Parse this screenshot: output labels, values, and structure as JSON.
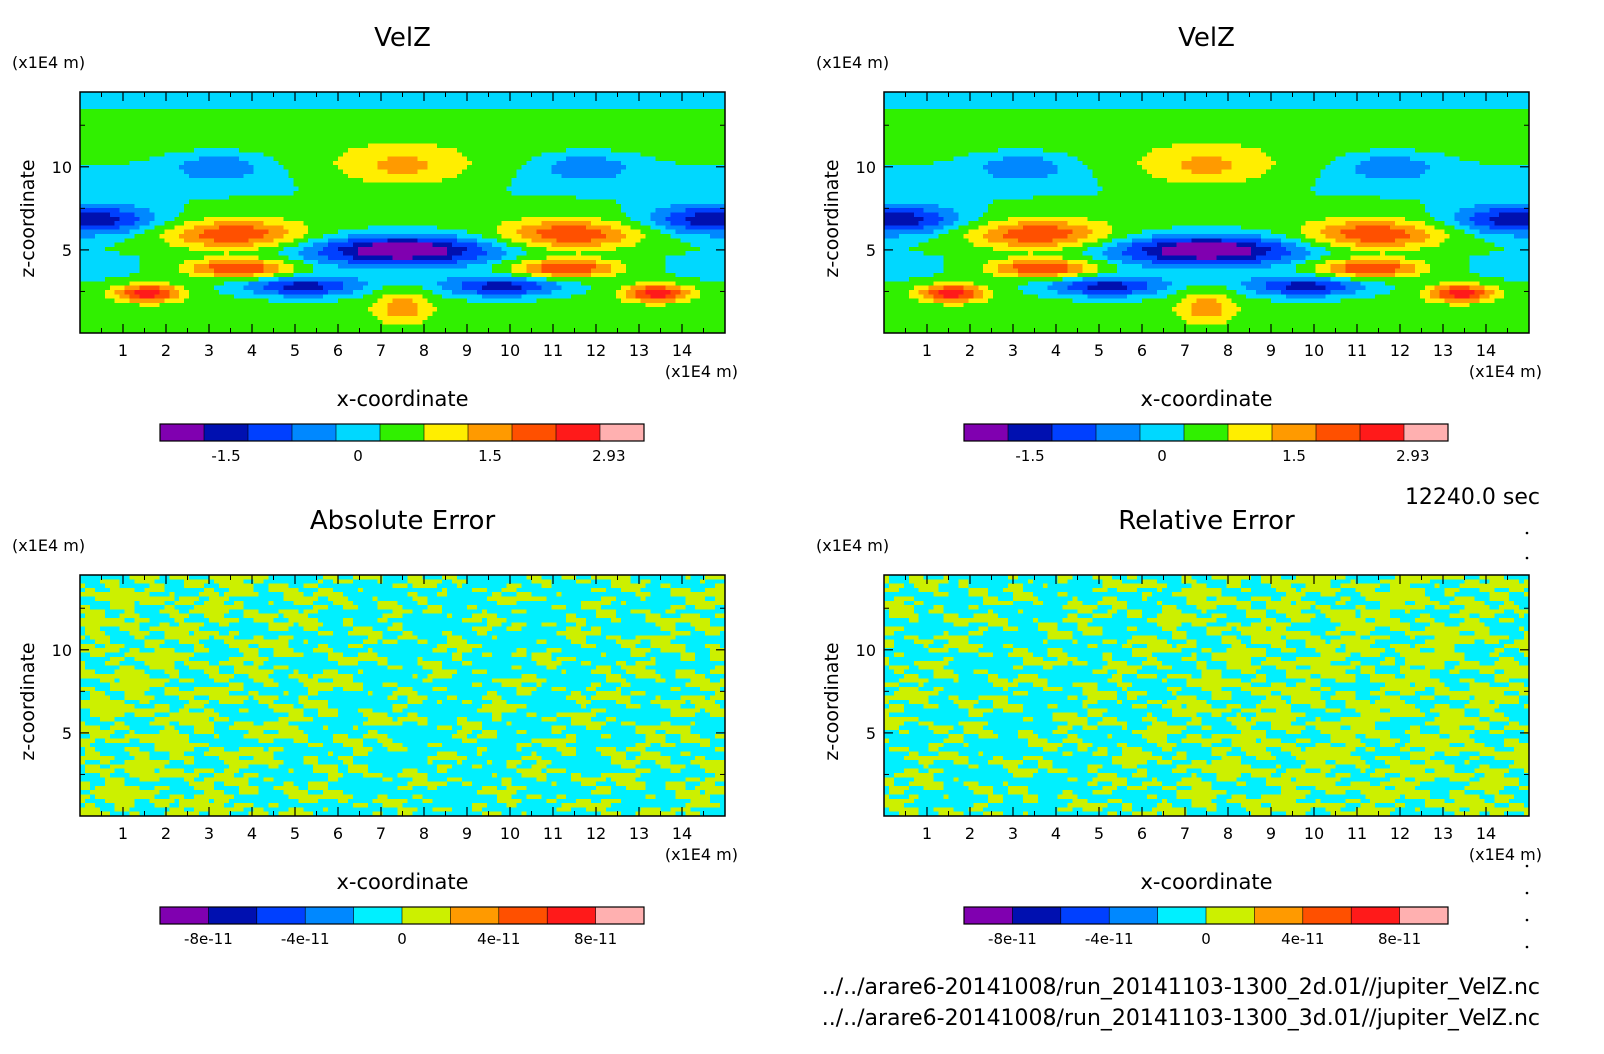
{
  "figure": {
    "time_label": "12240.0 sec",
    "file_paths": [
      "../../arare6-20141008/run_20141103-1300_2d.01//jupiter_VelZ.nc",
      "../../arare6-20141008/run_20141103-1300_3d.01//jupiter_VelZ.nc"
    ]
  },
  "chart_data": [
    {
      "type": "heatmap",
      "title": "VelZ",
      "xlabel": "x-coordinate",
      "ylabel": "z-coordinate",
      "x_unit": "(x1E4 m)",
      "y_unit": "(x1E4 m)",
      "xlim": [
        0,
        15
      ],
      "ylim": [
        0,
        14.5
      ],
      "x_ticks": [
        1,
        2,
        3,
        4,
        5,
        6,
        7,
        8,
        9,
        10,
        11,
        12,
        13,
        14
      ],
      "y_ticks": [
        5,
        10
      ],
      "field": "velz",
      "colorbar": {
        "colors": [
          "#8000b0",
          "#0010b0",
          "#0040ff",
          "#0088ff",
          "#00d8ff",
          "#30f000",
          "#ffee00",
          "#ff9a00",
          "#ff5000",
          "#ff1a1a",
          "#ffb0b0"
        ],
        "tick_labels": [
          "-1.5",
          "0",
          "1.5",
          "2.93"
        ],
        "tick_positions": [
          1.5,
          4.5,
          7.5,
          10.2
        ]
      }
    },
    {
      "type": "heatmap",
      "title": "VelZ",
      "xlabel": "x-coordinate",
      "ylabel": "z-coordinate",
      "x_unit": "(x1E4 m)",
      "y_unit": "(x1E4 m)",
      "xlim": [
        0,
        15
      ],
      "ylim": [
        0,
        14.5
      ],
      "x_ticks": [
        1,
        2,
        3,
        4,
        5,
        6,
        7,
        8,
        9,
        10,
        11,
        12,
        13,
        14
      ],
      "y_ticks": [
        5,
        10
      ],
      "field": "velz",
      "colorbar": {
        "colors": [
          "#8000b0",
          "#0010b0",
          "#0040ff",
          "#0088ff",
          "#00d8ff",
          "#30f000",
          "#ffee00",
          "#ff9a00",
          "#ff5000",
          "#ff1a1a",
          "#ffb0b0"
        ],
        "tick_labels": [
          "-1.5",
          "0",
          "1.5",
          "2.93"
        ],
        "tick_positions": [
          1.5,
          4.5,
          7.5,
          10.2
        ]
      }
    },
    {
      "type": "heatmap",
      "title": "Absolute Error",
      "xlabel": "x-coordinate",
      "ylabel": "z-coordinate",
      "x_unit": "(x1E4 m)",
      "y_unit": "(x1E4 m)",
      "xlim": [
        0,
        15
      ],
      "ylim": [
        0,
        14.5
      ],
      "x_ticks": [
        1,
        2,
        3,
        4,
        5,
        6,
        7,
        8,
        9,
        10,
        11,
        12,
        13,
        14
      ],
      "y_ticks": [
        5,
        10
      ],
      "field": "noise_a",
      "colorbar": {
        "colors": [
          "#8000b0",
          "#0010b0",
          "#0040ff",
          "#0088ff",
          "#00f0ff",
          "#ccf000",
          "#ff9a00",
          "#ff5000",
          "#ff1a1a",
          "#ffb0b0"
        ],
        "tick_labels": [
          "-8e-11",
          "-4e-11",
          "0",
          "4e-11",
          "8e-11"
        ],
        "tick_positions": [
          1,
          3,
          5,
          7,
          9
        ]
      }
    },
    {
      "type": "heatmap",
      "title": "Relative Error",
      "xlabel": "x-coordinate",
      "ylabel": "z-coordinate",
      "x_unit": "(x1E4 m)",
      "y_unit": "(x1E4 m)",
      "xlim": [
        0,
        15
      ],
      "ylim": [
        0,
        14.5
      ],
      "x_ticks": [
        1,
        2,
        3,
        4,
        5,
        6,
        7,
        8,
        9,
        10,
        11,
        12,
        13,
        14
      ],
      "y_ticks": [
        5,
        10
      ],
      "field": "noise_b",
      "colorbar": {
        "colors": [
          "#8000b0",
          "#0010b0",
          "#0040ff",
          "#0088ff",
          "#00f0ff",
          "#ccf000",
          "#ff9a00",
          "#ff5000",
          "#ff1a1a",
          "#ffb0b0"
        ],
        "tick_labels": [
          "-8e-11",
          "-4e-11",
          "0",
          "4e-11",
          "8e-11"
        ],
        "tick_positions": [
          1,
          3,
          5,
          7,
          9
        ]
      }
    }
  ]
}
